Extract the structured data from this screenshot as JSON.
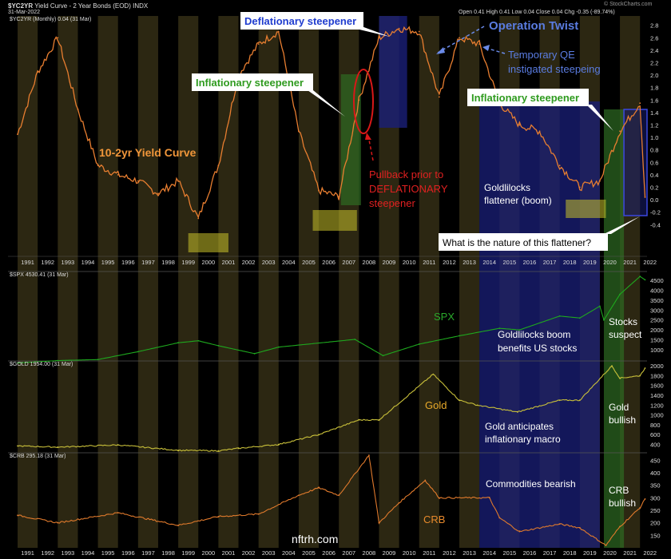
{
  "header": {
    "symbol": "$YC2YR",
    "title": "Yield Curve - 2 Year Bonds (EOD)",
    "exchange": "INDX",
    "date": "31-Mar-2022",
    "quote": "Open 0.41  High 0.41  Low 0.04  Close 0.04  Chg -0.35 (-89.74%)",
    "credit": "© StockCharts.com",
    "watermark": "nftrh.com"
  },
  "colors": {
    "background": "#000000",
    "yield_line": "#e87e30",
    "spx_line": "#1ea81e",
    "gold_line": "#c9c03a",
    "crb_line": "#e07a2c",
    "band": "#2c2712",
    "blue_box": "#1a1f78",
    "green_box": "#2e6b22",
    "yellow_box": "#c9c12a"
  },
  "chart_data": [
    {
      "type": "line",
      "panel": "yield-curve",
      "legend": "$YC2YR (Monthly) 0.04 (31 Mar)",
      "x": [
        1991,
        1992,
        1993,
        1994,
        1995,
        1996,
        1997,
        1998,
        1999,
        2000,
        2001,
        2002,
        2003,
        2004,
        2005,
        2006,
        2007,
        2008,
        2009,
        2010,
        2011,
        2012,
        2013,
        2014,
        2015,
        2016,
        2017,
        2018,
        2019,
        2020,
        2021,
        2022,
        2022.25
      ],
      "values": [
        1.05,
        2.05,
        2.6,
        1.45,
        0.55,
        0.4,
        0.3,
        0.1,
        0.3,
        -0.3,
        0.55,
        2.0,
        2.5,
        2.7,
        1.1,
        0.15,
        0.05,
        1.6,
        2.6,
        2.75,
        2.7,
        1.65,
        2.6,
        2.5,
        1.55,
        1.2,
        1.1,
        0.55,
        0.2,
        0.3,
        1.1,
        1.55,
        0.04
      ],
      "ylim": [
        -0.55,
        2.95
      ],
      "y_ticks": [
        "2.8",
        "2.6",
        "2.4",
        "2.2",
        "2.0",
        "1.8",
        "1.6",
        "1.4",
        "1.2",
        "1.0",
        "0.8",
        "0.6",
        "0.4",
        "0.2",
        "0.0",
        "-0.2",
        "-0.4"
      ],
      "x_ticks": [
        "1991",
        "1992",
        "1993",
        "1994",
        "1995",
        "1996",
        "1997",
        "1998",
        "1999",
        "2000",
        "2001",
        "2002",
        "2003",
        "2004",
        "2005",
        "2006",
        "2007",
        "2008",
        "2009",
        "2010",
        "2011",
        "2012",
        "2013",
        "2014",
        "2015",
        "2016",
        "2017",
        "2018",
        "2019",
        "2020",
        "2021",
        "2022"
      ]
    },
    {
      "type": "line",
      "panel": "spx",
      "legend": "$SPX 4530.41 (31 Mar)",
      "series_label": "SPX",
      "x": [
        1991,
        1993,
        1995,
        1997,
        1999,
        2000,
        2001,
        2002.8,
        2004,
        2007.8,
        2009.2,
        2011,
        2013,
        2015,
        2016,
        2018,
        2019,
        2020,
        2020.2,
        2021,
        2022,
        2022.25
      ],
      "values": [
        330,
        450,
        500,
        900,
        1350,
        1450,
        1200,
        800,
        1130,
        1520,
        700,
        1280,
        1700,
        2080,
        2000,
        2700,
        2600,
        3200,
        2500,
        3800,
        4700,
        4530
      ],
      "ylim": [
        430,
        4950
      ],
      "y_ticks": [
        "4500",
        "4000",
        "3500",
        "3000",
        "2500",
        "2000",
        "1500",
        "1000",
        "500"
      ]
    },
    {
      "type": "line",
      "panel": "gold",
      "legend": "$GOLD 1954.00 (31 Mar)",
      "series_label": "Gold",
      "x": [
        1991,
        1993,
        1996,
        1999,
        2001,
        2002,
        2004,
        2006,
        2008,
        2009,
        2011.7,
        2013,
        2013.9,
        2015.9,
        2018,
        2019,
        2020.6,
        2021,
        2022,
        2022.25
      ],
      "values": [
        370,
        345,
        390,
        280,
        270,
        320,
        400,
        600,
        900,
        900,
        1830,
        1300,
        1200,
        1060,
        1300,
        1300,
        2000,
        1750,
        1800,
        1954
      ],
      "ylim": [
        230,
        2100
      ],
      "y_ticks": [
        "2000",
        "1800",
        "1600",
        "1400",
        "1200",
        "1000",
        "800",
        "600",
        "400"
      ]
    },
    {
      "type": "line",
      "panel": "crb",
      "legend": "$CRB 295.18 (31 Mar)",
      "series_label": "CRB",
      "x": [
        1991,
        1993,
        1996,
        1999,
        2001,
        2003,
        2005,
        2006,
        2007,
        2008.5,
        2009,
        2010,
        2011.3,
        2012,
        2014.5,
        2015,
        2016,
        2018,
        2019,
        2020.3,
        2021,
        2022,
        2022.25
      ],
      "values": [
        230,
        200,
        240,
        190,
        225,
        235,
        310,
        340,
        310,
        470,
        200,
        280,
        370,
        300,
        300,
        220,
        165,
        195,
        180,
        110,
        185,
        260,
        295
      ],
      "ylim": [
        100,
        480
      ],
      "y_ticks": [
        "450",
        "400",
        "350",
        "300",
        "250",
        "200",
        "150"
      ]
    }
  ],
  "annotations": {
    "yield_curve": "10-2yr Yield Curve",
    "deflationary_steepener": "Deflationary steepener",
    "operation_twist": "Operation Twist",
    "temporary_qe_1": "Temporary QE",
    "temporary_qe_2": "instigated steepeing",
    "inflationary_steepener_1": "Inflationary steepener",
    "inflationary_steepener_2": "Inflationary steepener",
    "pullback_1": "Pullback prior to",
    "pullback_2": "DEFLATIONARY",
    "pullback_3": "steepener",
    "goldilocks_1": "Goldlilocks",
    "goldilocks_2": "flattener (boom)",
    "question": "What is the nature of this flattener?",
    "boom_1": "Goldlilocks boom",
    "boom_2": "benefits US stocks",
    "stocks_1": "Stocks",
    "stocks_2": "suspect",
    "gold_anticipates_1": "Gold anticipates",
    "gold_anticipates_2": "inflationary macro",
    "gold_bullish_1": "Gold",
    "gold_bullish_2": "bullish",
    "commodities_bearish": "Commodities bearish",
    "crb_bullish_1": "CRB",
    "crb_bullish_2": "bullish"
  }
}
